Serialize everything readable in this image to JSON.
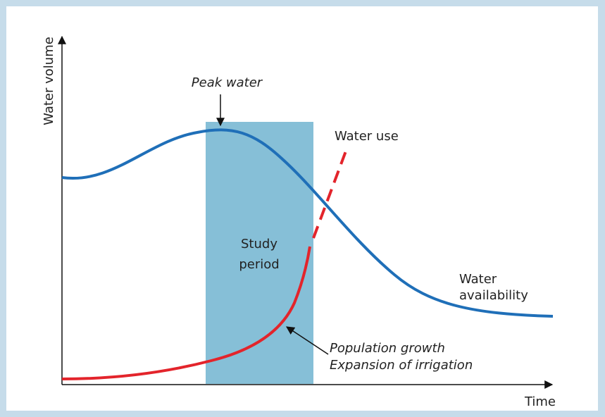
{
  "axes": {
    "y_label": "Water volume",
    "x_label": "Time"
  },
  "annotations": {
    "peak_water": "Peak water",
    "water_use": "Water use",
    "study_period": [
      "Study",
      "period"
    ],
    "water_availability": [
      "Water",
      "availability"
    ],
    "drivers": [
      "Population growth",
      "Expansion of irrigation"
    ]
  }
}
